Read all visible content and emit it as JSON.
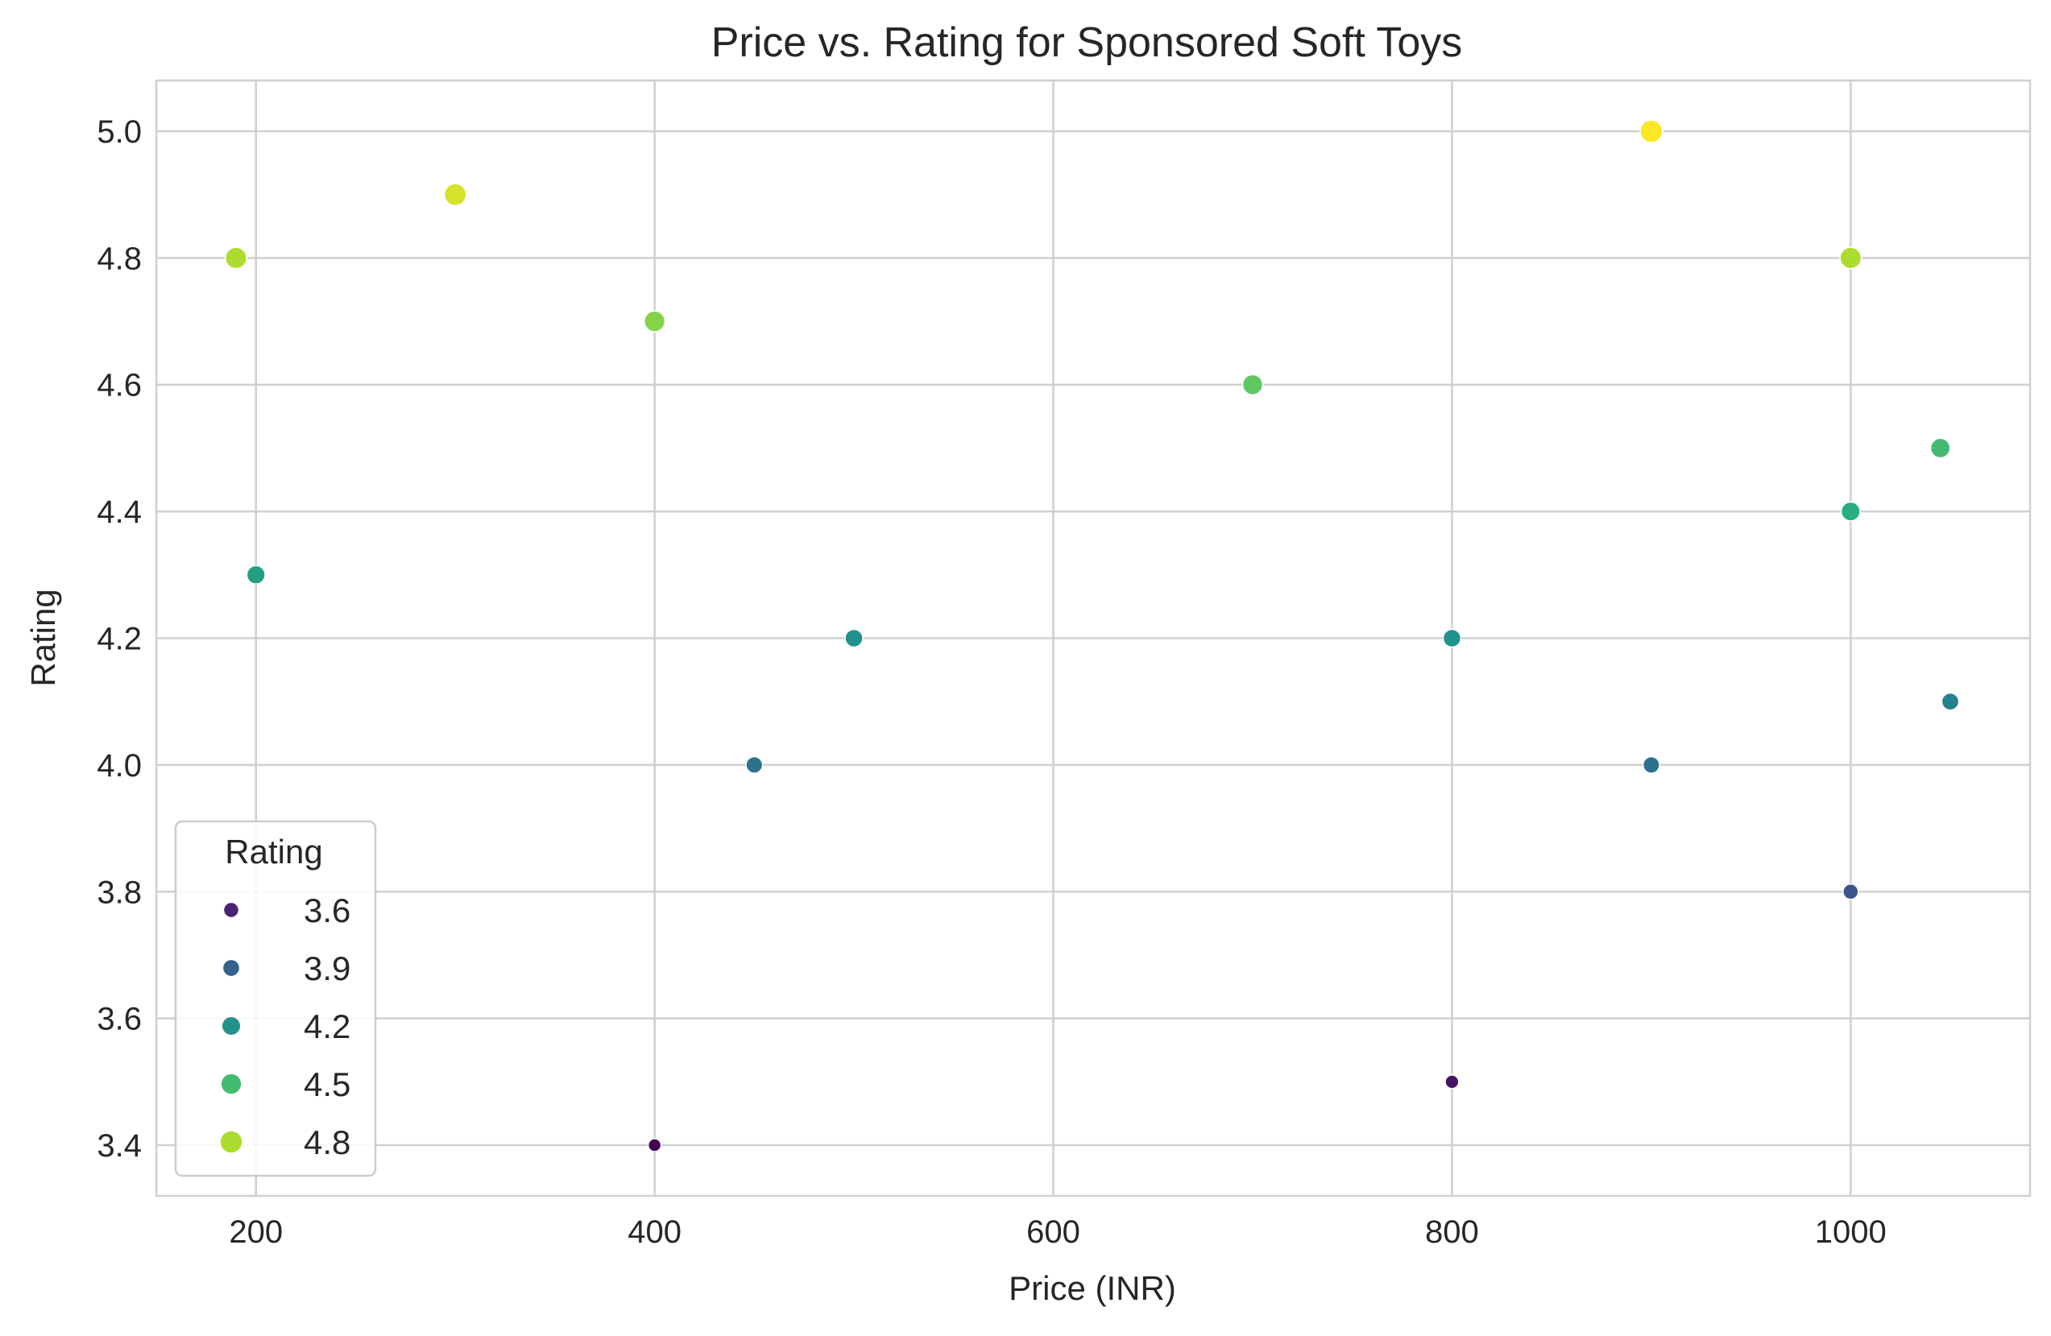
{
  "chart_data": {
    "type": "scatter",
    "title": "Price vs. Rating for Sponsored Soft Toys",
    "xlabel": "Price (INR)",
    "ylabel": "Rating",
    "xlim": [
      150,
      1090
    ],
    "ylim": [
      3.32,
      5.08
    ],
    "xticks": [
      200,
      400,
      600,
      800,
      1000
    ],
    "xtick_labels": [
      "200",
      "400",
      "600",
      "800",
      "1000"
    ],
    "yticks": [
      3.4,
      3.6,
      3.8,
      4.0,
      4.2,
      4.4,
      4.6,
      4.8,
      5.0
    ],
    "ytick_labels": [
      "3.4",
      "3.6",
      "3.8",
      "4.0",
      "4.2",
      "4.4",
      "4.6",
      "4.8",
      "5.0"
    ],
    "grid": true,
    "hue": "Rating",
    "size": "Rating",
    "colormap": "viridis",
    "points": [
      {
        "x": 190,
        "y": 4.8
      },
      {
        "x": 200,
        "y": 4.3
      },
      {
        "x": 300,
        "y": 4.9
      },
      {
        "x": 400,
        "y": 4.7
      },
      {
        "x": 400,
        "y": 3.4
      },
      {
        "x": 450,
        "y": 4.0
      },
      {
        "x": 500,
        "y": 4.2
      },
      {
        "x": 700,
        "y": 4.6
      },
      {
        "x": 800,
        "y": 4.2
      },
      {
        "x": 800,
        "y": 3.5
      },
      {
        "x": 900,
        "y": 5.0
      },
      {
        "x": 900,
        "y": 4.0
      },
      {
        "x": 1000,
        "y": 4.8
      },
      {
        "x": 1000,
        "y": 4.4
      },
      {
        "x": 1000,
        "y": 3.8
      },
      {
        "x": 1045,
        "y": 4.5
      },
      {
        "x": 1050,
        "y": 4.1
      }
    ],
    "legend": {
      "title": "Rating",
      "placement": "lower-left",
      "entries": [
        {
          "label": "3.6",
          "value": 3.6
        },
        {
          "label": "3.9",
          "value": 3.9
        },
        {
          "label": "4.2",
          "value": 4.2
        },
        {
          "label": "4.5",
          "value": 4.5
        },
        {
          "label": "4.8",
          "value": 4.8
        }
      ]
    }
  }
}
